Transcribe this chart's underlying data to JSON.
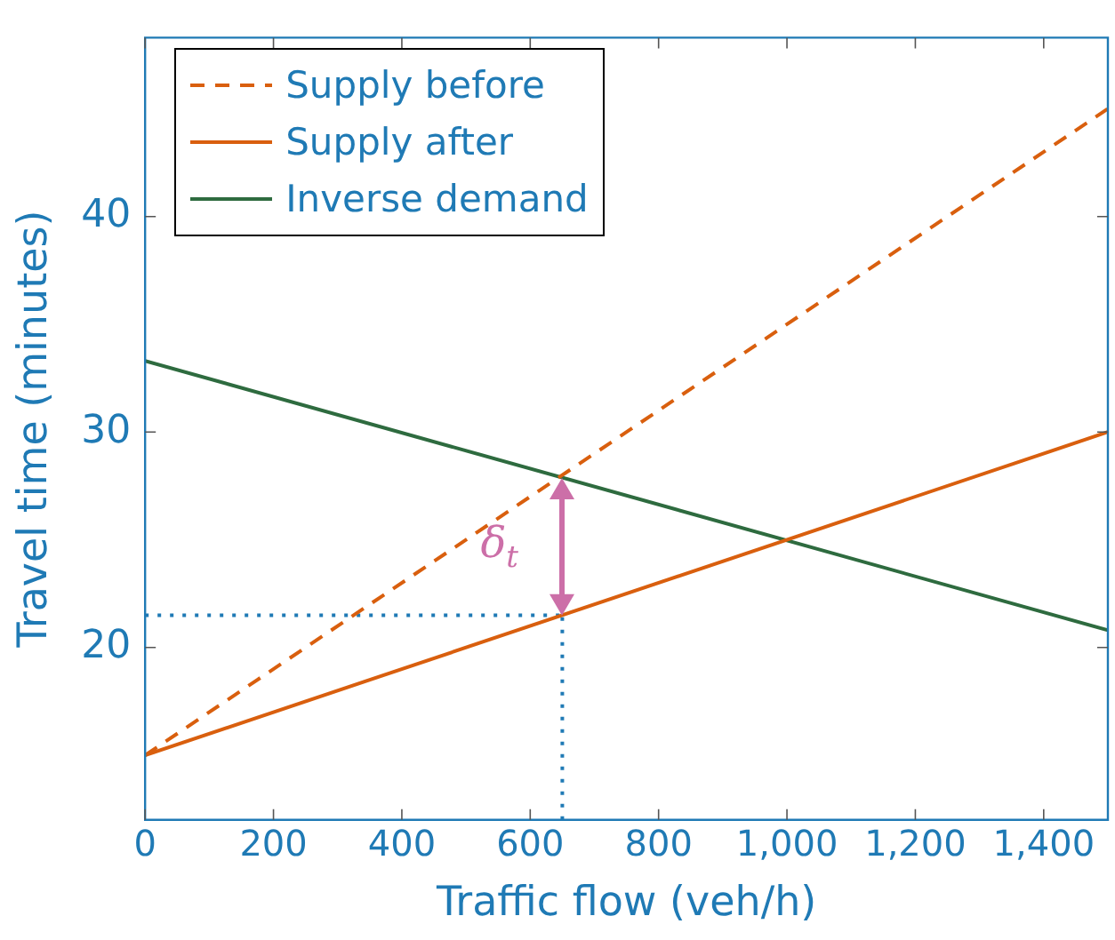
{
  "chart_data": {
    "type": "line",
    "xlabel": "Traffic flow (veh/h)",
    "ylabel": "Travel time (minutes)",
    "xlim": [
      0,
      1500
    ],
    "ylim": [
      12,
      48.3
    ],
    "xticks": [
      0,
      200,
      400,
      600,
      800,
      {
        "value": 1000,
        "label": "1,000"
      },
      {
        "value": 1200,
        "label": "1,200"
      },
      {
        "value": 1400,
        "label": "1,400"
      }
    ],
    "yticks": [
      20,
      30,
      40
    ],
    "grid": false,
    "legend": "top left",
    "marker": "none",
    "series": [
      {
        "name": "Supply before",
        "color": "#d95f0e",
        "x": [
          0,
          1500
        ],
        "values": [
          15,
          45
        ],
        "line_style": "dashed"
      },
      {
        "name": "Supply after",
        "color": "#d95f0e",
        "x": [
          0,
          1500
        ],
        "values": [
          15,
          30
        ],
        "line_style": "solid"
      },
      {
        "name": "Inverse demand",
        "color": "#2e6b3f",
        "x": [
          0,
          1500
        ],
        "values": [
          33.3,
          20.8
        ],
        "line_style": "solid"
      },
      {
        "color": "#1f7ab5",
        "x": [
          0,
          650
        ],
        "values": [
          21.5,
          21.5
        ],
        "line_style": "dotted"
      },
      {
        "color": "#1f7ab5",
        "x": [
          650,
          650
        ],
        "values": [
          12,
          21.5
        ],
        "line_style": "dotted"
      }
    ],
    "annotations": [
      "δ$_{t}$"
    ]
  }
}
